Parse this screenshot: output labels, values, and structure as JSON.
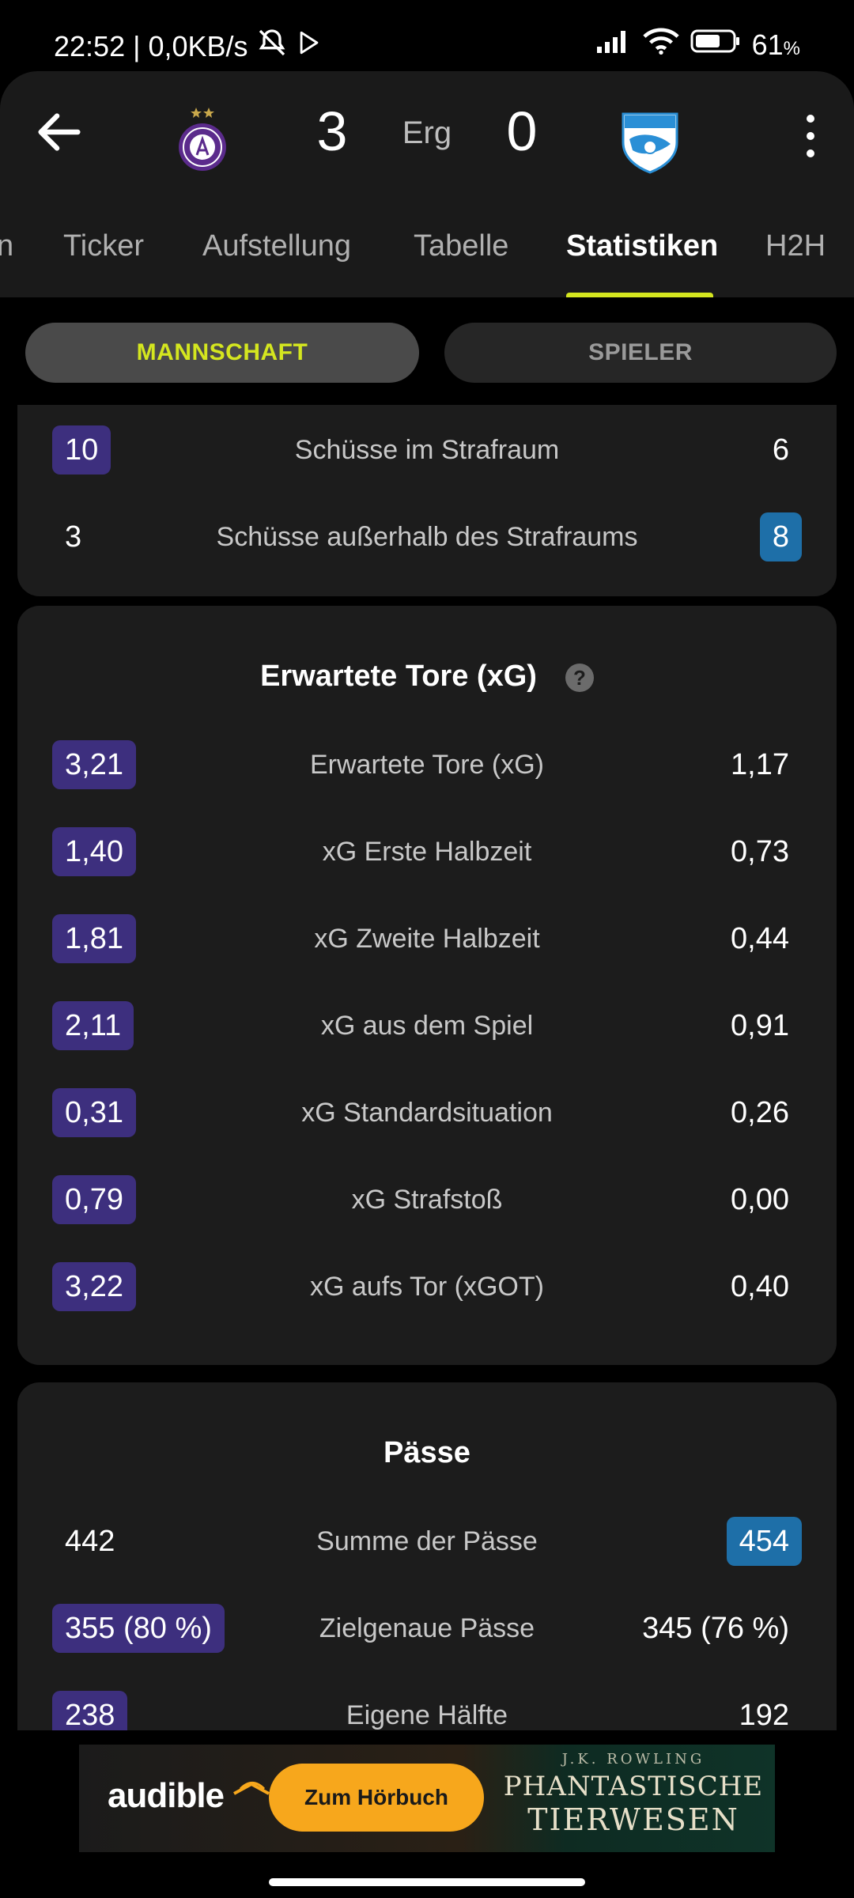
{
  "status_bar": {
    "time_info": "22:52 | 0,0KB/s",
    "battery": "61",
    "battery_unit": "%"
  },
  "header": {
    "home_score": "3",
    "status": "Erg",
    "away_score": "0",
    "home_crest_icon": "austria-wien-crest-icon",
    "away_crest_icon": "tsv-hartberg-crest-icon"
  },
  "tabs": [
    "n",
    "Ticker",
    "Aufstellung",
    "Tabelle",
    "Statistiken",
    "H2H"
  ],
  "segment": {
    "team": "MANNSCHAFT",
    "player": "SPIELER"
  },
  "shots": {
    "rows": [
      {
        "home": "10",
        "label": "Schüsse im Strafraum",
        "away": "6"
      },
      {
        "home": "3",
        "label": "Schüsse außerhalb des Strafraums",
        "away": "8"
      }
    ]
  },
  "xg": {
    "title": "Erwartete Tore (xG)",
    "help": "?",
    "rows": [
      {
        "home": "3,21",
        "label": "Erwartete Tore (xG)",
        "away": "1,17"
      },
      {
        "home": "1,40",
        "label": "xG Erste Halbzeit",
        "away": "0,73"
      },
      {
        "home": "1,81",
        "label": "xG Zweite Halbzeit",
        "away": "0,44"
      },
      {
        "home": "2,11",
        "label": "xG aus dem Spiel",
        "away": "0,91"
      },
      {
        "home": "0,31",
        "label": "xG Standardsituation",
        "away": "0,26"
      },
      {
        "home": "0,79",
        "label": "xG Strafstoß",
        "away": "0,00"
      },
      {
        "home": "3,22",
        "label": "xG aufs Tor (xGOT)",
        "away": "0,40"
      }
    ]
  },
  "passes": {
    "title": "Pässe",
    "rows": [
      {
        "home": "442",
        "label": "Summe der Pässe",
        "away": "454"
      },
      {
        "home": "355 (80 %)",
        "label": "Zielgenaue Pässe",
        "away": "345 (76 %)"
      },
      {
        "home": "238",
        "label": "Eigene Hälfte",
        "away": "192"
      }
    ]
  },
  "ad": {
    "brand": "audible",
    "cta": "Zum Hörbuch",
    "author": "J.K. ROWLING",
    "title_line1": "PHANTASTISCHE",
    "title_line2": "TIERWESEN"
  },
  "colors": {
    "accent": "#d4e61f",
    "home_highlight": "#3d2f7e",
    "away_highlight": "#1e6fa8",
    "card_bg": "#1c1c1c"
  }
}
